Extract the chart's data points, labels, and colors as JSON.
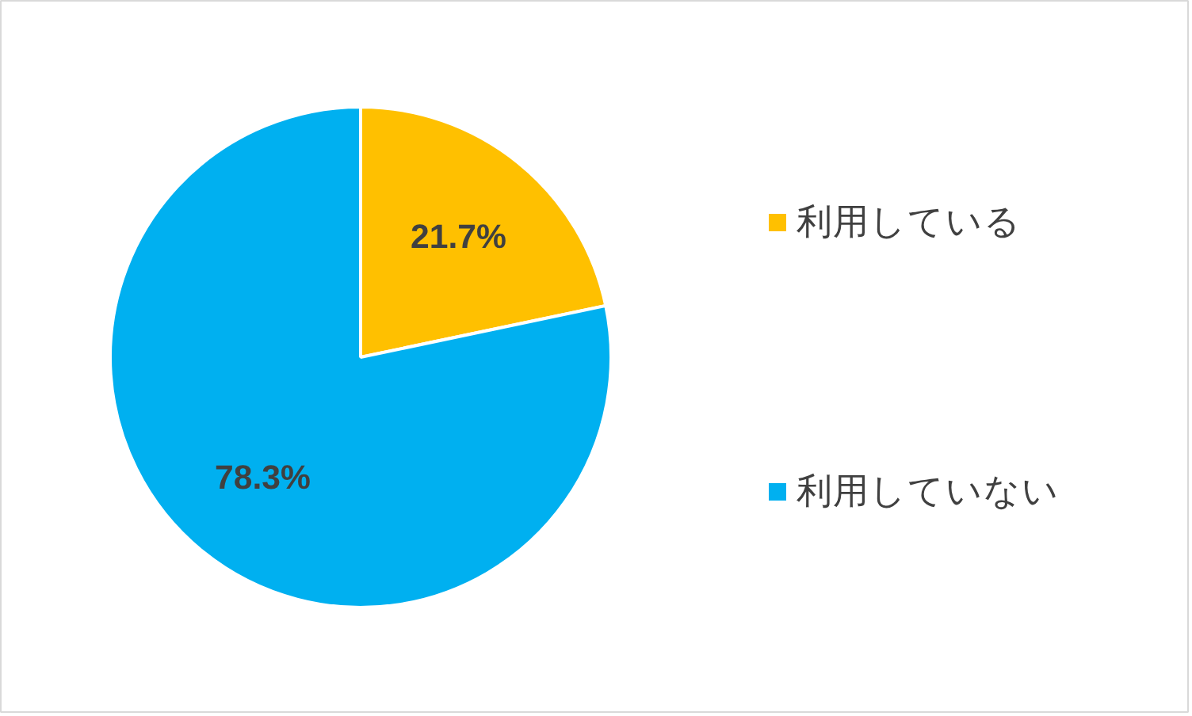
{
  "chart_data": {
    "type": "pie",
    "categories": [
      "利用している",
      "利用していない"
    ],
    "values": [
      21.7,
      78.3
    ],
    "colors": [
      "#ffc000",
      "#00b0f0"
    ],
    "value_labels": [
      "21.7%",
      "78.3%"
    ],
    "legend": "right"
  }
}
